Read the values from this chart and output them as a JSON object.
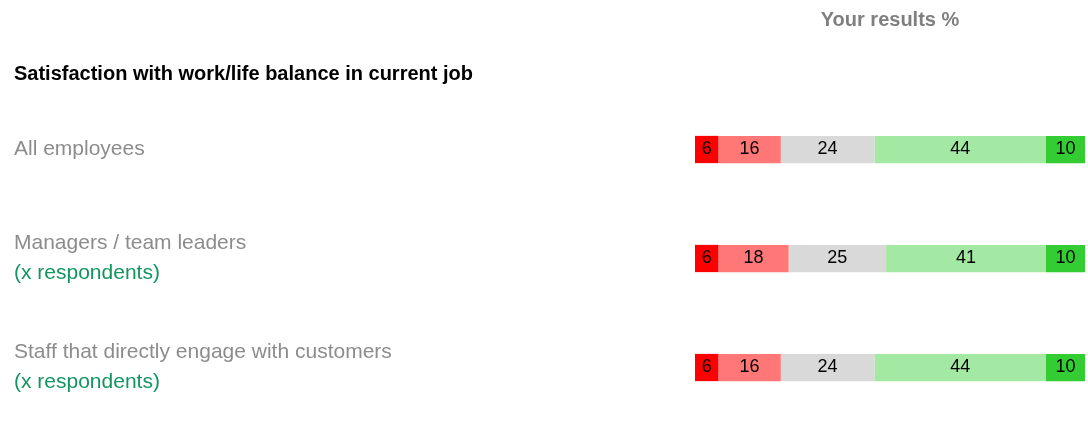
{
  "chart_data": {
    "type": "bar",
    "orientation": "horizontal",
    "stacked": true,
    "title": "Your results %",
    "subtitle": "Satisfaction with work/life balance in current job",
    "categories": [
      "All employees",
      "Managers / team leaders",
      "Staff that directly engage with customers"
    ],
    "series": [
      {
        "color": "#ff0000",
        "values": [
          6,
          6,
          6
        ]
      },
      {
        "color": "#ff7777",
        "values": [
          16,
          18,
          16
        ]
      },
      {
        "color": "#d9d9d9",
        "values": [
          24,
          25,
          24
        ]
      },
      {
        "color": "#a3e8a3",
        "values": [
          44,
          41,
          44
        ]
      },
      {
        "color": "#33cc33",
        "values": [
          10,
          10,
          10
        ]
      }
    ],
    "xlim": [
      0,
      100
    ],
    "data_labels": true,
    "legend": false,
    "annotations": [
      "(x respondents)",
      "(x respondents)"
    ]
  }
}
